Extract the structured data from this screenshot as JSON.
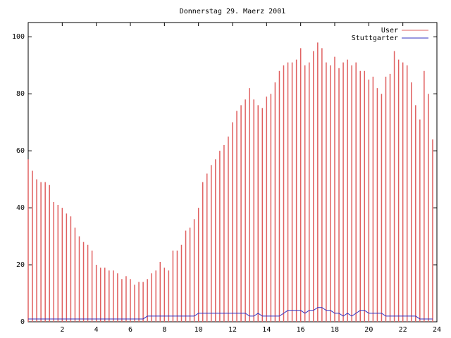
{
  "chart_data": {
    "type": "impulses",
    "title": "Donnerstag 29. Maerz 2001",
    "x": [
      0,
      0.25,
      0.5,
      0.75,
      1,
      1.25,
      1.5,
      1.75,
      2,
      2.25,
      2.5,
      2.75,
      3,
      3.25,
      3.5,
      3.75,
      4,
      4.25,
      4.5,
      4.75,
      5,
      5.25,
      5.5,
      5.75,
      6,
      6.25,
      6.5,
      6.75,
      7,
      7.25,
      7.5,
      7.75,
      8,
      8.25,
      8.5,
      8.75,
      9,
      9.25,
      9.5,
      9.75,
      10,
      10.25,
      10.5,
      10.75,
      11,
      11.25,
      11.5,
      11.75,
      12,
      12.25,
      12.5,
      12.75,
      13,
      13.25,
      13.5,
      13.75,
      14,
      14.25,
      14.5,
      14.75,
      15,
      15.25,
      15.5,
      15.75,
      16,
      16.25,
      16.5,
      16.75,
      17,
      17.25,
      17.5,
      17.75,
      18,
      18.25,
      18.5,
      18.75,
      19,
      19.25,
      19.5,
      19.75,
      20,
      20.25,
      20.5,
      20.75,
      21,
      21.25,
      21.5,
      21.75,
      22,
      22.25,
      22.5,
      22.75,
      23,
      23.25,
      23.5,
      23.75
    ],
    "series": [
      {
        "name": "User",
        "color": "#e06060",
        "style": "impulses",
        "values": [
          57,
          53,
          50,
          49,
          49,
          48,
          42,
          41,
          40,
          38,
          37,
          33,
          30,
          28,
          27,
          25,
          20,
          19,
          19,
          18,
          18,
          17,
          15,
          16,
          15,
          13,
          14,
          14,
          15,
          17,
          18,
          21,
          19,
          18,
          25,
          25,
          27,
          32,
          33,
          36,
          40,
          49,
          52,
          55,
          57,
          60,
          62,
          65,
          70,
          74,
          76,
          78,
          82,
          78,
          76,
          75,
          79,
          80,
          84,
          88,
          90,
          91,
          91,
          92,
          96,
          90,
          91,
          95,
          98,
          96,
          91,
          90,
          93,
          89,
          91,
          92,
          90,
          91,
          88,
          88,
          85,
          86,
          82,
          80,
          86,
          87,
          95,
          92,
          91,
          90,
          84,
          76,
          71,
          88,
          80,
          64
        ]
      },
      {
        "name": "Stuttgarter",
        "color": "#3030c0",
        "style": "line",
        "values": [
          1,
          1,
          1,
          1,
          1,
          1,
          1,
          1,
          1,
          1,
          1,
          1,
          1,
          1,
          1,
          1,
          1,
          1,
          1,
          1,
          1,
          1,
          1,
          1,
          1,
          1,
          1,
          1,
          2,
          2,
          2,
          2,
          2,
          2,
          2,
          2,
          2,
          2,
          2,
          2,
          3,
          3,
          3,
          3,
          3,
          3,
          3,
          3,
          3,
          3,
          3,
          3,
          2,
          2,
          3,
          2,
          2,
          2,
          2,
          2,
          3,
          4,
          4,
          4,
          4,
          3,
          4,
          4,
          5,
          5,
          4,
          4,
          3,
          3,
          2,
          3,
          2,
          3,
          4,
          4,
          3,
          3,
          3,
          3,
          2,
          2,
          2,
          2,
          2,
          2,
          2,
          2,
          1,
          1,
          1,
          1
        ]
      }
    ],
    "xlim": [
      0,
      24
    ],
    "xticks": [
      2,
      4,
      6,
      8,
      10,
      12,
      14,
      16,
      18,
      20,
      22,
      24
    ],
    "ylim": [
      0,
      105
    ],
    "yticks": [
      0,
      20,
      40,
      60,
      80,
      100
    ],
    "legend": "top-right"
  }
}
